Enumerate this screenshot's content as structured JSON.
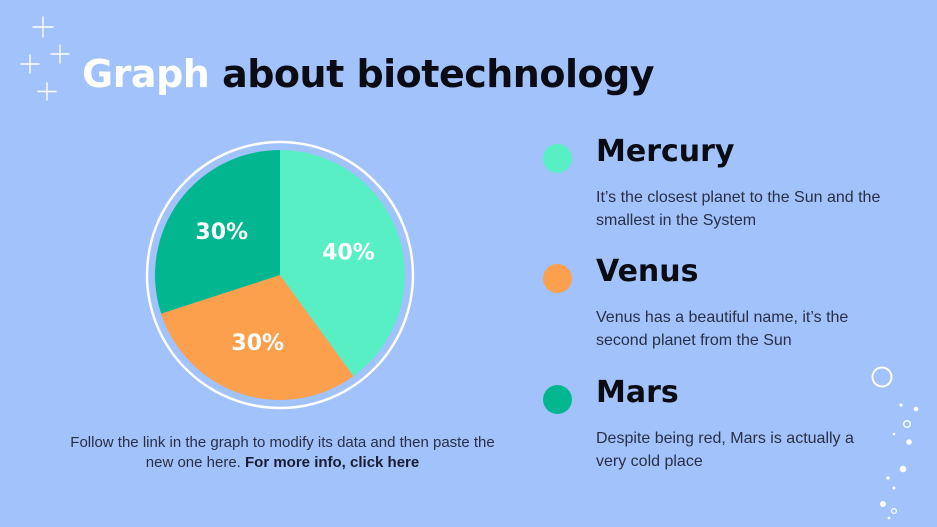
{
  "title": {
    "highlight": "Graph",
    "rest": "about biotechnology"
  },
  "chart_data": {
    "type": "pie",
    "slices": [
      {
        "name": "Mercury",
        "value": 40,
        "label": "40%",
        "color": "#58efc5"
      },
      {
        "name": "Venus",
        "value": 30,
        "label": "30%",
        "color": "#fca04e"
      },
      {
        "name": "Mars",
        "value": 30,
        "label": "30%",
        "color": "#02b78f"
      }
    ],
    "legend_position": "right"
  },
  "legend": [
    {
      "name": "Mercury",
      "description": "It’s the closest planet to the Sun and the smallest in the System",
      "color": "#58efc5"
    },
    {
      "name": "Venus",
      "description": "Venus has a beautiful name, it’s the second planet from the Sun",
      "color": "#fca04e"
    },
    {
      "name": "Mars",
      "description": "Despite being red, Mars is actually a very cold place",
      "color": "#02b78f"
    }
  ],
  "caption": {
    "text": "Follow the link in the graph to modify its data and then paste the new one here.",
    "link": "For more info, click here"
  },
  "colors": {
    "background": "#a1c2fa",
    "title_highlight": "#ffffff",
    "text_dark": "#0b0b14"
  },
  "icons": {
    "sparkles": "sparkle-icon",
    "dots": "decorative-dots"
  }
}
